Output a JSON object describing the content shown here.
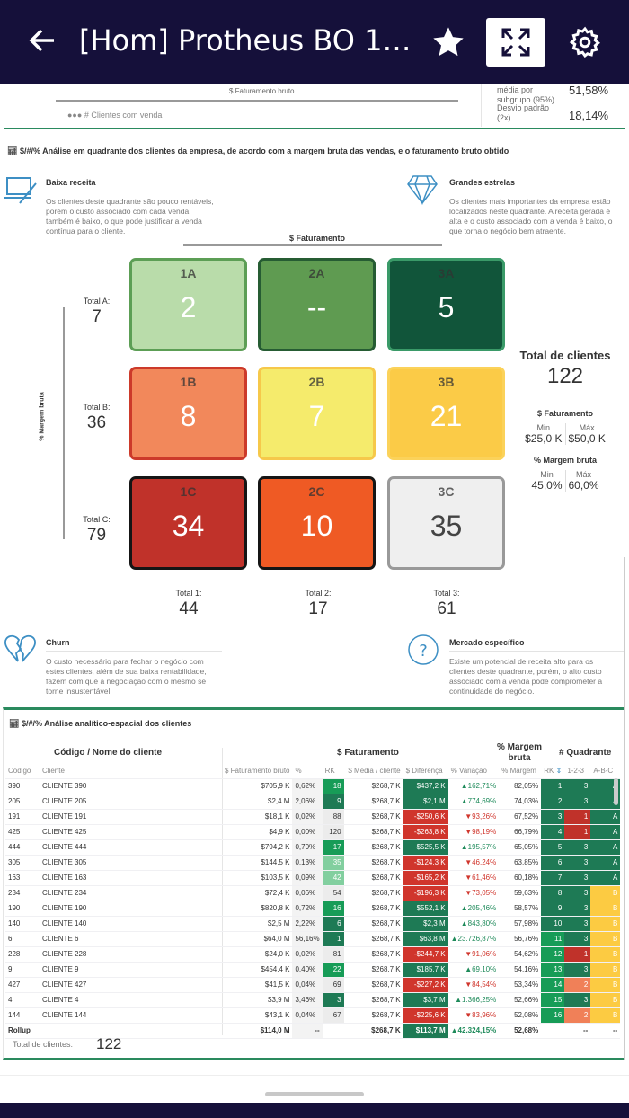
{
  "header": {
    "title": "[Hom] Protheus BO 1....",
    "back_icon": "arrow-left-icon",
    "star_icon": "star-icon",
    "expand_icon": "expand-icon",
    "settings_icon": "gear-icon"
  },
  "top_card": {
    "axis_label": "$ Faturamento bruto",
    "legend": "# Clientes com venda",
    "stat1_label": "média por subgrupo (95%)",
    "stat1_value": "51,58%",
    "stat2_label": "Desvio padrão (2x)",
    "stat2_value": "18,14%"
  },
  "quadrant": {
    "title": "$/#/% Análise em quadrante dos clientes da empresa, de acordo com a margem bruta das vendas, e o faturamento bruto obtido",
    "desc": [
      {
        "title": "Baixa receita",
        "text": "Os clientes deste quadrante são pouco rentáveis, porém o custo associado com cada venda também é baixo, o que pode justificar a venda contínua para o cliente.",
        "icon": "laptop-pen-icon"
      },
      {
        "title": "Grandes estrelas",
        "text": "Os clientes mais importantes da empresa estão localizados neste quadrante. A receita gerada é alta e o custo associado com a venda é baixo, o que torna o negócio bem atraente.",
        "icon": "diamond-icon"
      },
      {
        "title": "Churn",
        "text": "O custo necessário para fechar o negócio com estes clientes, além de sua baixa rentabilidade, fazem com que a negociação com o mesmo se torne insustentável.",
        "icon": "broken-heart-icon"
      },
      {
        "title": "Mercado específico",
        "text": "Existe um potencial de receita alto para os clientes deste quadrante, porém, o alto custo associado com a venda pode comprometer a continuidade do negócio.",
        "icon": "question-icon"
      }
    ],
    "x_axis": "$ Faturamento",
    "y_axis": "% Margem bruta",
    "cells": [
      {
        "label": "1A",
        "value": "2",
        "bg": "#b9dcaa",
        "border": "#5c9e55"
      },
      {
        "label": "2A",
        "value": "--",
        "bg": "#5f9b51",
        "border": "#265c33"
      },
      {
        "label": "3A",
        "value": "5",
        "bg": "#11553a",
        "border": "#3a9a68"
      },
      {
        "label": "1B",
        "value": "8",
        "bg": "#f2885b",
        "border": "#cc3a2a"
      },
      {
        "label": "2B",
        "value": "7",
        "bg": "#f5eb6c",
        "border": "#f6c84a"
      },
      {
        "label": "3B",
        "value": "21",
        "bg": "#fbcb47",
        "border": "#fbd25a"
      },
      {
        "label": "1C",
        "value": "34",
        "bg": "#c0322a",
        "border": "#151515"
      },
      {
        "label": "2C",
        "value": "10",
        "bg": "#ef5a24",
        "border": "#151515"
      },
      {
        "label": "3C",
        "value": "35",
        "bg": "#efefef",
        "border": "#999999"
      }
    ],
    "row_totals": [
      {
        "label": "Total A:",
        "value": "7"
      },
      {
        "label": "Total B:",
        "value": "36"
      },
      {
        "label": "Total C:",
        "value": "79"
      }
    ],
    "col_totals": [
      {
        "label": "Total 1:",
        "value": "44"
      },
      {
        "label": "Total 2:",
        "value": "17"
      },
      {
        "label": "Total 3:",
        "value": "61"
      }
    ],
    "total_label": "Total de clientes",
    "total_value": "122",
    "fat_label": "$ Faturamento",
    "fat_min_label": "Min",
    "fat_min": "$25,0 K",
    "fat_max_label": "Máx",
    "fat_max": "$50,0 K",
    "mar_label": "% Margem bruta",
    "mar_min_label": "Min",
    "mar_min": "45,0%",
    "mar_max_label": "Máx",
    "mar_max": "60,0%"
  },
  "table": {
    "title": "$/#/% Análise analítico-espacial dos clientes",
    "group_headers": [
      "Código / Nome do cliente",
      "$ Faturamento",
      "% Margem bruta",
      "# Quadrante"
    ],
    "columns": [
      "Código",
      "Cliente",
      "$ Faturamento bruto",
      "%",
      "RK",
      "$ Média / cliente",
      "$ Diferença",
      "% Variação",
      "% Margem",
      "RK",
      "1-2-3",
      "A-B-C"
    ],
    "colors": {
      "dg": "#1e7a55",
      "bg": "#179c57",
      "lg": "#82cf9f",
      "gr": "#ececec",
      "rd": "#d0352c",
      "dr": "#c0322a",
      "or": "#f08058",
      "ye": "#fccb42",
      "up": "#1e8a5a",
      "down": "#d0352c"
    },
    "rows": [
      [
        "390",
        "CLIENTE 390",
        "$705,9 K",
        "0,62%",
        "18",
        "bg",
        "$268,7 K",
        "$437,2 K",
        "up",
        "162,71%",
        "82,05%",
        "1",
        "3",
        "dg",
        "A",
        "dg"
      ],
      [
        "205",
        "CLIENTE 205",
        "$2,4 M",
        "2,06%",
        "9",
        "dg",
        "$268,7 K",
        "$2,1 M",
        "up",
        "774,69%",
        "74,03%",
        "2",
        "3",
        "dg",
        "A",
        "dg"
      ],
      [
        "191",
        "CLIENTE 191",
        "$18,1 K",
        "0,02%",
        "88",
        "gr",
        "$268,7 K",
        "-$250,6 K",
        "down",
        "93,26%",
        "67,52%",
        "3",
        "1",
        "dr",
        "A",
        "dg"
      ],
      [
        "425",
        "CLIENTE 425",
        "$4,9 K",
        "0,00%",
        "120",
        "gr",
        "$268,7 K",
        "-$263,8 K",
        "down",
        "98,19%",
        "66,79%",
        "4",
        "1",
        "dr",
        "A",
        "dg"
      ],
      [
        "444",
        "CLIENTE 444",
        "$794,2 K",
        "0,70%",
        "17",
        "bg",
        "$268,7 K",
        "$525,5 K",
        "up",
        "195,57%",
        "65,05%",
        "5",
        "3",
        "dg",
        "A",
        "dg"
      ],
      [
        "305",
        "CLIENTE 305",
        "$144,5 K",
        "0,13%",
        "35",
        "lg",
        "$268,7 K",
        "-$124,3 K",
        "down",
        "46,24%",
        "63,85%",
        "6",
        "3",
        "dg",
        "A",
        "dg"
      ],
      [
        "163",
        "CLIENTE 163",
        "$103,5 K",
        "0,09%",
        "42",
        "lg",
        "$268,7 K",
        "-$165,2 K",
        "down",
        "61,46%",
        "60,18%",
        "7",
        "3",
        "dg",
        "A",
        "dg"
      ],
      [
        "234",
        "CLIENTE 234",
        "$72,4 K",
        "0,06%",
        "54",
        "gr",
        "$268,7 K",
        "-$196,3 K",
        "down",
        "73,05%",
        "59,63%",
        "8",
        "3",
        "dg",
        "B",
        "ye"
      ],
      [
        "190",
        "CLIENTE 190",
        "$820,8 K",
        "0,72%",
        "16",
        "bg",
        "$268,7 K",
        "$552,1 K",
        "up",
        "205,46%",
        "58,57%",
        "9",
        "3",
        "dg",
        "B",
        "ye"
      ],
      [
        "140",
        "CLIENTE 140",
        "$2,5 M",
        "2,22%",
        "6",
        "dg",
        "$268,7 K",
        "$2,3 M",
        "up",
        "843,80%",
        "57,98%",
        "10",
        "3",
        "dg",
        "B",
        "ye"
      ],
      [
        "6",
        "CLIENTE 6",
        "$64,0 M",
        "56,16%",
        "1",
        "dg",
        "$268,7 K",
        "$63,8 M",
        "up",
        "23.726,87%",
        "56,76%",
        "11",
        "3",
        "dg",
        "B",
        "ye"
      ],
      [
        "228",
        "CLIENTE 228",
        "$24,0 K",
        "0,02%",
        "81",
        "gr",
        "$268,7 K",
        "-$244,7 K",
        "down",
        "91,06%",
        "54,62%",
        "12",
        "1",
        "dr",
        "B",
        "ye"
      ],
      [
        "9",
        "CLIENTE 9",
        "$454,4 K",
        "0,40%",
        "22",
        "bg",
        "$268,7 K",
        "$185,7 K",
        "up",
        "69,10%",
        "54,16%",
        "13",
        "3",
        "dg",
        "B",
        "ye"
      ],
      [
        "427",
        "CLIENTE 427",
        "$41,5 K",
        "0,04%",
        "69",
        "gr",
        "$268,7 K",
        "-$227,2 K",
        "down",
        "84,54%",
        "53,34%",
        "14",
        "2",
        "or",
        "B",
        "ye"
      ],
      [
        "4",
        "CLIENTE 4",
        "$3,9 M",
        "3,46%",
        "3",
        "dg",
        "$268,7 K",
        "$3,7 M",
        "up",
        "1.366,25%",
        "52,66%",
        "15",
        "3",
        "dg",
        "B",
        "ye"
      ],
      [
        "144",
        "CLIENTE 144",
        "$43,1 K",
        "0,04%",
        "67",
        "gr",
        "$268,7 K",
        "-$225,6 K",
        "down",
        "83,96%",
        "52,08%",
        "16",
        "2",
        "or",
        "B",
        "ye"
      ]
    ],
    "rollup": {
      "label": "Rollup",
      "fat": "$114,0 M",
      "pct": "--",
      "media": "$268,7 K",
      "dif": "$113,7 M",
      "var": "42.324,15%",
      "margem": "52,68%",
      "q1": "--",
      "q2": "--"
    },
    "total_label": "Total de clientes:",
    "total_value": "122"
  }
}
